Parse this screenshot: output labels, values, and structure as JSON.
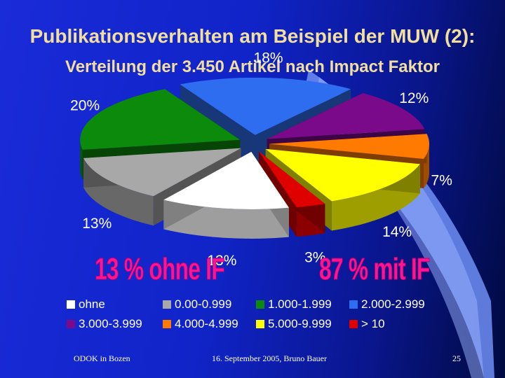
{
  "title": "Publikationsverhalten am Beispiel der MUW (2):",
  "subtitle": "Verteilung der 3.450 Artikel nach Impact Faktor",
  "chart_data": {
    "type": "pie",
    "categories": [
      "ohne",
      "0.00-0.999",
      "1.000-1.999",
      "2.000-2.999",
      "3.000-3.999",
      "4.000-4.999",
      "5.000-9.999",
      "> 10"
    ],
    "values": [
      13,
      13,
      20,
      18,
      12,
      7,
      14,
      3
    ],
    "value_labels": [
      "13%",
      "13%",
      "20%",
      "18%",
      "12%",
      "7%",
      "14%",
      "3%"
    ],
    "colors": [
      "#ffffff",
      "#a8a8a8",
      "#0b8a0b",
      "#2f6df0",
      "#7a0a8a",
      "#ff7a00",
      "#ffff00",
      "#e00000"
    ],
    "legend_placement": "bottom",
    "exploded": true,
    "three_d": true
  },
  "annotations": {
    "ohne_if": "13 %  ohne IF",
    "mit_if": "87 %  mit IF"
  },
  "footer": {
    "left": "ODOK in Bozen",
    "center": "16. September 2005, Bruno Bauer",
    "page": "25"
  }
}
